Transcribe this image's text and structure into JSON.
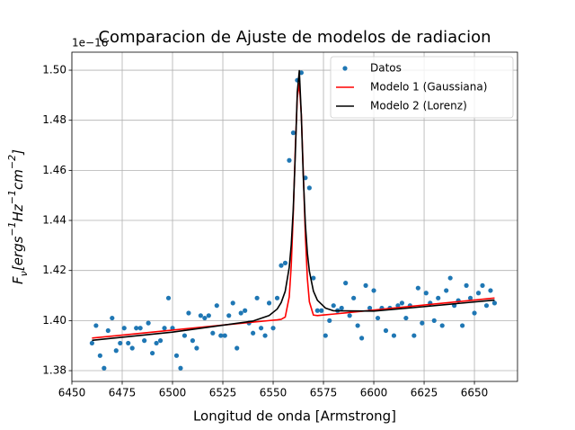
{
  "chart_data": {
    "type": "line",
    "title": "Comparacion de Ajuste de modelos de radiacion",
    "xlabel": "Longitud de onda [Armstrong]",
    "ylabel": [
      {
        "text": "F",
        "shift": "none"
      },
      {
        "text": "ν",
        "shift": "sub"
      },
      {
        "text": "[ergs",
        "shift": "none"
      },
      {
        "text": "−1",
        "shift": "sup"
      },
      {
        "text": "Hz",
        "shift": "none"
      },
      {
        "text": "−1",
        "shift": "sup"
      },
      {
        "text": "cm",
        "shift": "none"
      },
      {
        "text": "−2",
        "shift": "sup"
      },
      {
        "text": "]",
        "shift": "none"
      }
    ],
    "offset_text": "1e−16",
    "xlim": [
      6450,
      6671.4
    ],
    "ylim": [
      1.3757,
      1.5072
    ],
    "xticks": [
      6450,
      6475,
      6500,
      6525,
      6550,
      6575,
      6600,
      6625,
      6650
    ],
    "yticks": [
      1.38,
      {
        "value": 1.4,
        "label": "1.40"
      },
      1.42,
      1.44,
      1.46,
      1.48,
      {
        "value": 1.5,
        "label": "1.50"
      }
    ],
    "grid": true,
    "legend": "upper right",
    "series": [
      {
        "name": "Datos",
        "type": "scatter",
        "color": "#1f77b4",
        "x": [
          6460,
          6462,
          6464,
          6466,
          6468,
          6470,
          6472,
          6474,
          6476,
          6478,
          6480,
          6482,
          6484,
          6486,
          6488,
          6490,
          6492,
          6494,
          6496,
          6498,
          6500,
          6502,
          6504,
          6506,
          6508,
          6510,
          6512,
          6514,
          6516,
          6518,
          6520,
          6522,
          6524,
          6526,
          6528,
          6530,
          6532,
          6534,
          6536,
          6538,
          6540,
          6542,
          6544,
          6546,
          6548,
          6550,
          6552,
          6554,
          6556,
          6558,
          6560,
          6562,
          6564,
          6566,
          6568,
          6570,
          6572,
          6574,
          6576,
          6578,
          6580,
          6582,
          6584,
          6586,
          6588,
          6590,
          6592,
          6594,
          6596,
          6598,
          6600,
          6602,
          6604,
          6606,
          6608,
          6610,
          6612,
          6614,
          6616,
          6618,
          6620,
          6622,
          6624,
          6626,
          6628,
          6630,
          6632,
          6634,
          6636,
          6638,
          6640,
          6642,
          6644,
          6646,
          6648,
          6650,
          6652,
          6654,
          6656,
          6658,
          6660
        ],
        "values": [
          1.391,
          1.398,
          1.386,
          1.381,
          1.396,
          1.401,
          1.388,
          1.391,
          1.397,
          1.391,
          1.389,
          1.397,
          1.397,
          1.392,
          1.399,
          1.387,
          1.391,
          1.392,
          1.397,
          1.409,
          1.397,
          1.386,
          1.381,
          1.394,
          1.403,
          1.392,
          1.389,
          1.402,
          1.401,
          1.402,
          1.395,
          1.406,
          1.394,
          1.394,
          1.402,
          1.407,
          1.389,
          1.403,
          1.404,
          1.399,
          1.395,
          1.409,
          1.397,
          1.394,
          1.407,
          1.397,
          1.409,
          1.422,
          1.423,
          1.464,
          1.475,
          1.496,
          1.499,
          1.457,
          1.453,
          1.417,
          1.404,
          1.404,
          1.394,
          1.4,
          1.406,
          1.404,
          1.405,
          1.415,
          1.402,
          1.409,
          1.398,
          1.393,
          1.414,
          1.405,
          1.412,
          1.401,
          1.405,
          1.396,
          1.405,
          1.394,
          1.406,
          1.407,
          1.401,
          1.406,
          1.394,
          1.413,
          1.399,
          1.411,
          1.407,
          1.4,
          1.409,
          1.398,
          1.412,
          1.417,
          1.406,
          1.408,
          1.398,
          1.414,
          1.409,
          1.403,
          1.411,
          1.414,
          1.406,
          1.412,
          1.407
        ]
      },
      {
        "name": "Modelo 1 (Gaussiana)",
        "type": "line",
        "color": "#ff0000",
        "x": [
          6460,
          6500,
          6540,
          6548,
          6552,
          6554,
          6556,
          6558,
          6559,
          6560,
          6561,
          6562,
          6563,
          6564,
          6565,
          6566,
          6567,
          6568,
          6570,
          6572,
          6576,
          6580,
          6600,
          6620,
          6660
        ],
        "values": [
          1.393,
          1.3962,
          1.3994,
          1.4,
          1.4003,
          1.4005,
          1.4014,
          1.4095,
          1.4221,
          1.4428,
          1.4684,
          1.4892,
          1.4948,
          1.4823,
          1.4584,
          1.4341,
          1.4168,
          1.4075,
          1.4022,
          1.402,
          1.4023,
          1.4026,
          1.4042,
          1.4058,
          1.409
        ]
      },
      {
        "name": "Modelo 2 (Lorenz)",
        "type": "line",
        "color": "#000000",
        "x": [
          6460,
          6500,
          6540,
          6548,
          6552,
          6554,
          6556,
          6558,
          6559,
          6560,
          6561,
          6562,
          6563,
          6564,
          6565,
          6566,
          6567,
          6568,
          6570,
          6572,
          6576,
          6580,
          6600,
          6620,
          6660
        ],
        "values": [
          1.3921,
          1.3954,
          1.3998,
          1.402,
          1.4046,
          1.4072,
          1.4117,
          1.4213,
          1.4303,
          1.4446,
          1.4662,
          1.4912,
          1.4998,
          1.4818,
          1.457,
          1.4386,
          1.427,
          1.4197,
          1.4118,
          1.4081,
          1.405,
          1.4039,
          1.4038,
          1.4052,
          1.4082
        ]
      }
    ]
  }
}
